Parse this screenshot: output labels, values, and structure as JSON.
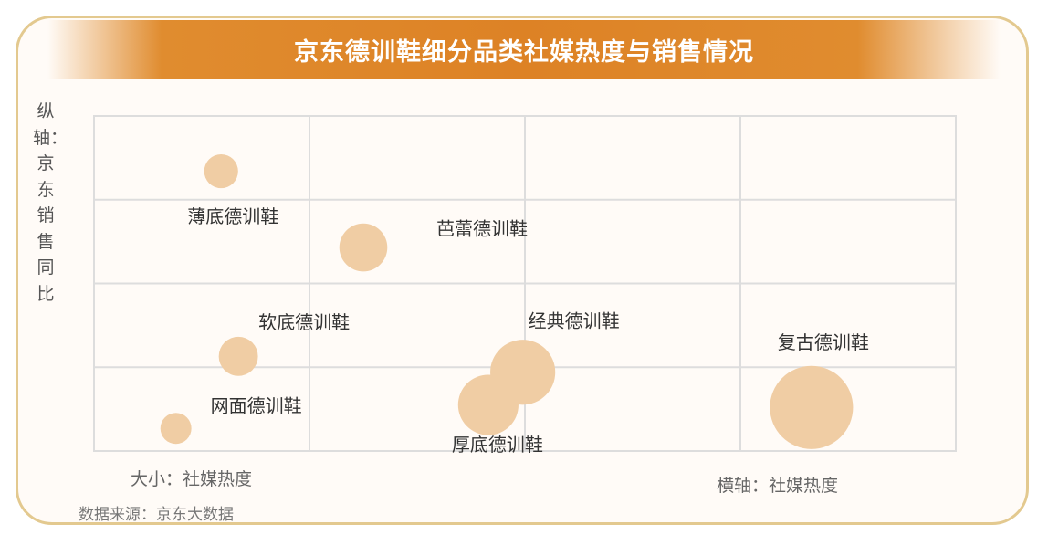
{
  "title": "京东德训鞋细分品类社媒热度与销售情况",
  "size_note": "大小：社媒热度",
  "source": "数据来源：京东大数据",
  "colors": {
    "bubble": "#f0cda4",
    "title_band": "#dd8225",
    "grid": "#dddddd",
    "border": "#e3c98f"
  },
  "chart_data": {
    "type": "scatter",
    "title": "京东德训鞋细分品类社媒热度与销售情况",
    "xlabel": "横轴：社媒热度",
    "ylabel": "纵轴：京东销售同比",
    "size_label": "大小：社媒热度",
    "xlim": [
      0,
      4
    ],
    "ylim": [
      0,
      4
    ],
    "grid": true,
    "legend": "none",
    "points": [
      {
        "label": "薄底德训鞋",
        "x": 0.59,
        "y": 3.34,
        "size": 0.6
      },
      {
        "label": "芭蕾德训鞋",
        "x": 1.25,
        "y": 2.43,
        "size": 1.2
      },
      {
        "label": "软底德训鞋",
        "x": 0.67,
        "y": 1.13,
        "size": 0.8
      },
      {
        "label": "网面德训鞋",
        "x": 0.38,
        "y": 0.27,
        "size": 0.5
      },
      {
        "label": "经典德训鞋",
        "x": 1.99,
        "y": 0.94,
        "size": 2.2
      },
      {
        "label": "厚底德训鞋",
        "x": 1.83,
        "y": 0.55,
        "size": 1.9
      },
      {
        "label": "复古德训鞋",
        "x": 3.33,
        "y": 0.52,
        "size": 3.6
      }
    ]
  }
}
